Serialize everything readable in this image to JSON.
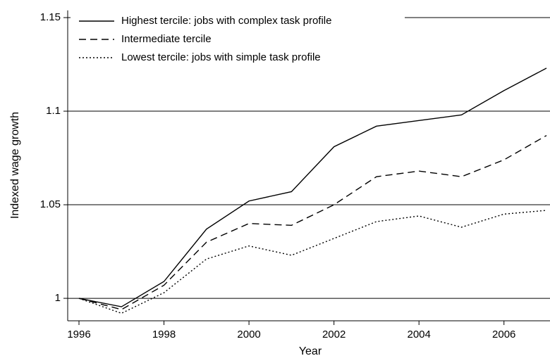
{
  "chart_data": {
    "type": "line",
    "x_label": "Year",
    "y_label": "Indexed wage growth",
    "x": [
      1996,
      1997,
      1998,
      1999,
      2000,
      2001,
      2002,
      2003,
      2004,
      2005,
      2006,
      2007
    ],
    "series": [
      {
        "name": "Highest tercile: jobs with complex task profile",
        "color": "#000000",
        "dash": "solid",
        "values": [
          1,
          0.9955,
          1.009,
          1.037,
          1.052,
          1.057,
          1.081,
          1.092,
          1.095,
          1.098,
          1.111,
          1.123
        ]
      },
      {
        "name": "Intermediate tercile",
        "color": "#000000",
        "dash": "dashed",
        "values": [
          1,
          0.994,
          1.007,
          1.03,
          1.04,
          1.039,
          1.05,
          1.065,
          1.068,
          1.065,
          1.074,
          1.087
        ]
      },
      {
        "name": "Lowest tercile: jobs with simple task profile",
        "color": "#000000",
        "dash": "dotted",
        "values": [
          1,
          0.992,
          1.003,
          1.021,
          1.028,
          1.023,
          1.032,
          1.041,
          1.044,
          1.038,
          1.045,
          1.047
        ]
      }
    ],
    "xlim": [
      1996,
      2007
    ],
    "xticks": [
      1996,
      1998,
      2000,
      2002,
      2004,
      2006
    ],
    "ylim": [
      0.988,
      1.152
    ],
    "yticks": [
      1,
      1.05,
      1.1,
      1.15
    ],
    "grid": true,
    "legend": "top-left"
  }
}
